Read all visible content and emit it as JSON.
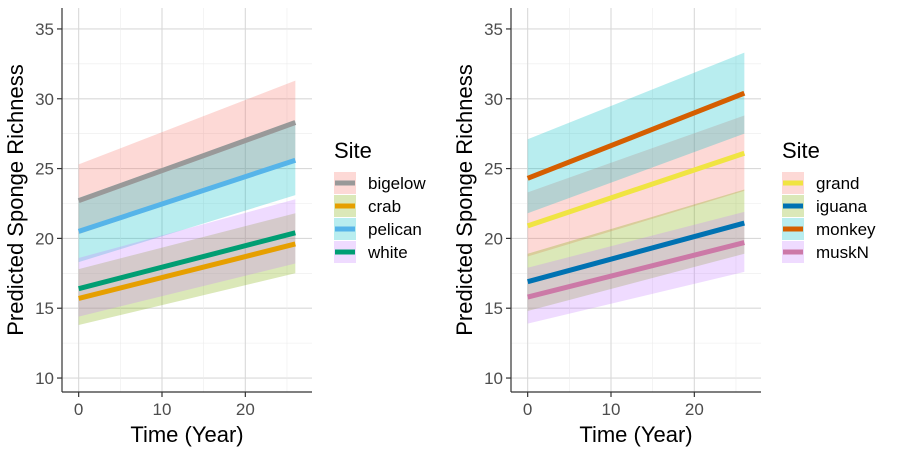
{
  "chart_data": [
    {
      "type": "line",
      "xlabel": "Time (Year)",
      "ylabel": "Predicted Sponge Richness",
      "xlim": [
        -2,
        28
      ],
      "ylim": [
        9,
        36.5
      ],
      "x_ticks": [
        0,
        10,
        20
      ],
      "y_ticks": [
        10,
        15,
        20,
        25,
        30,
        35
      ],
      "grid": true,
      "legend": {
        "title": "Site",
        "position": "right",
        "entries": [
          "bigelow",
          "crab",
          "pelican",
          "white"
        ]
      },
      "series": [
        {
          "name": "bigelow",
          "color": "#999999",
          "ribbon_color": "#F8766D",
          "x": [
            0,
            26
          ],
          "y": [
            22.7,
            28.3
          ],
          "lower": [
            20.3,
            25.5
          ],
          "upper": [
            25.3,
            31.3
          ]
        },
        {
          "name": "crab",
          "color": "#E69F00",
          "ribbon_color": "#7CAE00",
          "x": [
            0,
            26
          ],
          "y": [
            15.7,
            19.6
          ],
          "lower": [
            13.8,
            17.5
          ],
          "upper": [
            17.8,
            21.8
          ]
        },
        {
          "name": "pelican",
          "color": "#56B4E9",
          "ribbon_color": "#00BFC4",
          "x": [
            0,
            26
          ],
          "y": [
            20.5,
            25.6
          ],
          "lower": [
            18.3,
            23.1
          ],
          "upper": [
            22.9,
            28.4
          ]
        },
        {
          "name": "white",
          "color": "#009E73",
          "ribbon_color": "#C77CFF",
          "x": [
            0,
            26
          ],
          "y": [
            16.4,
            20.4
          ],
          "lower": [
            14.4,
            18.2
          ],
          "upper": [
            18.6,
            22.8
          ]
        }
      ]
    },
    {
      "type": "line",
      "xlabel": "Time (Year)",
      "ylabel": "Predicted Sponge Richness",
      "xlim": [
        -2,
        28
      ],
      "ylim": [
        9,
        36.5
      ],
      "x_ticks": [
        0,
        10,
        20
      ],
      "y_ticks": [
        10,
        15,
        20,
        25,
        30,
        35
      ],
      "grid": true,
      "legend": {
        "title": "Site",
        "position": "right",
        "entries": [
          "grand",
          "iguana",
          "monkey",
          "muskN"
        ]
      },
      "series": [
        {
          "name": "grand",
          "color": "#F0E442",
          "ribbon_color": "#F8766D",
          "x": [
            0,
            26
          ],
          "y": [
            20.9,
            26.1
          ],
          "lower": [
            18.7,
            23.4
          ],
          "upper": [
            23.3,
            28.8
          ]
        },
        {
          "name": "iguana",
          "color": "#0072B2",
          "ribbon_color": "#7CAE00",
          "x": [
            0,
            26
          ],
          "y": [
            16.9,
            21.1
          ],
          "lower": [
            14.8,
            18.9
          ],
          "upper": [
            18.9,
            23.5
          ]
        },
        {
          "name": "monkey",
          "color": "#D55E00",
          "ribbon_color": "#00BFC4",
          "x": [
            0,
            26
          ],
          "y": [
            24.3,
            30.4
          ],
          "lower": [
            21.8,
            27.5
          ],
          "upper": [
            27.1,
            33.3
          ]
        },
        {
          "name": "muskN",
          "color": "#CC79A7",
          "ribbon_color": "#C77CFF",
          "x": [
            0,
            26
          ],
          "y": [
            15.8,
            19.7
          ],
          "lower": [
            13.9,
            17.6
          ],
          "upper": [
            17.9,
            21.9
          ]
        }
      ]
    }
  ]
}
